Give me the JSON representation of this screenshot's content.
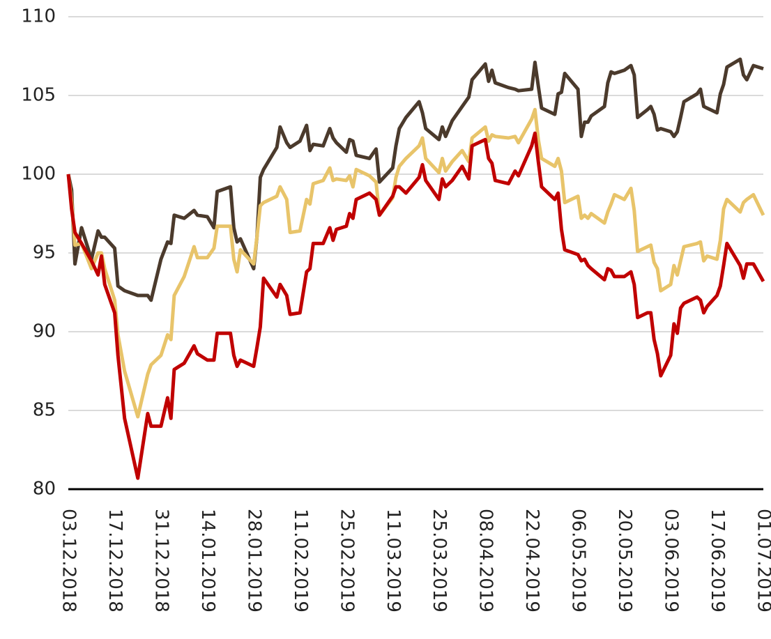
{
  "chart_data": {
    "type": "line",
    "x": [
      "03.12.2018",
      "04.12.2018",
      "05.12.2018",
      "07.12.2018",
      "10.12.2018",
      "12.12.2018",
      "13.12.2018",
      "14.12.2018",
      "17.12.2018",
      "18.12.2018",
      "20.12.2018",
      "24.12.2018",
      "27.12.2018",
      "28.12.2018",
      "31.12.2018",
      "02.01.2019",
      "03.01.2019",
      "04.01.2019",
      "07.01.2019",
      "10.01.2019",
      "11.01.2019",
      "14.01.2019",
      "16.01.2019",
      "17.01.2019",
      "21.01.2019",
      "22.01.2019",
      "23.01.2019",
      "24.01.2019",
      "28.01.2019",
      "29.01.2019",
      "30.01.2019",
      "31.01.2019",
      "04.02.2019",
      "05.02.2019",
      "07.02.2019",
      "08.02.2019",
      "11.02.2019",
      "13.02.2019",
      "14.02.2019",
      "15.02.2019",
      "18.02.2019",
      "20.02.2019",
      "21.02.2019",
      "22.02.2019",
      "25.02.2019",
      "26.02.2019",
      "27.02.2019",
      "28.02.2019",
      "04.03.2019",
      "06.03.2019",
      "07.03.2019",
      "11.03.2019",
      "12.03.2019",
      "13.03.2019",
      "15.03.2019",
      "19.03.2019",
      "20.03.2019",
      "21.03.2019",
      "25.03.2019",
      "26.03.2019",
      "27.03.2019",
      "29.03.2019",
      "01.04.2019",
      "03.04.2019",
      "04.04.2019",
      "08.04.2019",
      "09.04.2019",
      "10.04.2019",
      "11.04.2019",
      "15.04.2019",
      "17.04.2019",
      "18.04.2019",
      "22.04.2019",
      "23.04.2019",
      "24.04.2019",
      "25.04.2019",
      "29.04.2019",
      "30.04.2019",
      "01.05.2019",
      "02.05.2019",
      "06.05.2019",
      "07.05.2019",
      "08.05.2019",
      "09.05.2019",
      "10.05.2019",
      "14.05.2019",
      "15.05.2019",
      "16.05.2019",
      "17.05.2019",
      "20.05.2019",
      "22.05.2019",
      "23.05.2019",
      "24.05.2019",
      "27.05.2019",
      "28.05.2019",
      "29.05.2019",
      "30.05.2019",
      "31.05.2019",
      "03.06.2019",
      "04.06.2019",
      "05.06.2019",
      "06.06.2019",
      "07.06.2019",
      "11.06.2019",
      "12.06.2019",
      "13.06.2019",
      "14.06.2019",
      "17.06.2019",
      "18.06.2019",
      "19.06.2019",
      "20.06.2019",
      "24.06.2019",
      "25.06.2019",
      "26.06.2019",
      "28.06.2019",
      "01.07.2019"
    ],
    "series": [
      {
        "color": "#4b3a2c",
        "values": [
          100,
          99,
          94.3,
          96.6,
          94.6,
          96.4,
          96,
          96,
          95.3,
          92.9,
          92.6,
          92.3,
          92.3,
          92,
          94.6,
          95.7,
          95.6,
          97.4,
          97.2,
          97.7,
          97.4,
          97.3,
          96.6,
          98.9,
          99.2,
          96.6,
          95.7,
          95.9,
          94,
          96,
          99.8,
          100.3,
          101.7,
          103,
          102,
          101.7,
          102.1,
          103.1,
          101.5,
          101.9,
          101.8,
          102.9,
          102.3,
          102,
          101.4,
          102.2,
          102.1,
          101.2,
          101,
          101.6,
          99.5,
          100.4,
          101.8,
          102.9,
          103.6,
          104.6,
          103.9,
          102.9,
          102.2,
          103,
          102.4,
          103.4,
          104.3,
          104.9,
          106,
          107,
          105.9,
          106.6,
          105.8,
          105.5,
          105.4,
          105.3,
          105.4,
          107.1,
          105.6,
          104.2,
          103.8,
          105.1,
          105.2,
          106.4,
          105.4,
          102.4,
          103.3,
          103.3,
          103.7,
          104.3,
          105.8,
          106.5,
          106.4,
          106.6,
          106.9,
          106.3,
          103.6,
          104.1,
          104.3,
          103.8,
          102.8,
          102.9,
          102.7,
          102.4,
          102.7,
          103.6,
          104.6,
          105.1,
          105.4,
          104.3,
          104.2,
          103.9,
          105.1,
          105.7,
          106.8,
          107.3,
          106.3,
          106,
          106.9,
          106.7
        ]
      },
      {
        "color": "#e8c46a",
        "values": [
          100,
          98.3,
          95.5,
          95.6,
          94,
          95,
          95,
          94,
          92,
          89.8,
          87.5,
          84.6,
          87.3,
          87.9,
          88.5,
          89.8,
          89.5,
          92.3,
          93.5,
          95.4,
          94.7,
          94.7,
          95.3,
          96.7,
          96.7,
          94.6,
          93.8,
          95.2,
          94.3,
          96,
          98,
          98.2,
          98.6,
          99.2,
          98.4,
          96.3,
          96.4,
          98.4,
          98.1,
          99.4,
          99.6,
          100.4,
          99.6,
          99.7,
          99.6,
          99.9,
          99.2,
          100.3,
          99.9,
          99.5,
          97.4,
          98.5,
          99.8,
          100.5,
          101,
          101.8,
          102.3,
          101,
          100.1,
          101,
          100.2,
          100.8,
          101.5,
          100.8,
          102.3,
          103,
          102.1,
          102.5,
          102.4,
          102.3,
          102.4,
          102,
          103.5,
          104.1,
          102.2,
          101,
          100.5,
          101,
          100.2,
          98.2,
          98.6,
          97.2,
          97.4,
          97.2,
          97.5,
          96.9,
          97.6,
          98.1,
          98.7,
          98.4,
          99.1,
          97.7,
          95.1,
          95.4,
          95.5,
          94.4,
          94,
          92.6,
          93,
          94.2,
          93.6,
          94.5,
          95.4,
          95.6,
          95.7,
          94.5,
          94.8,
          94.6,
          95.8,
          97.8,
          98.4,
          97.6,
          98.2,
          98.4,
          98.7,
          97.4
        ]
      },
      {
        "color": "#c00000",
        "values": [
          100,
          97.8,
          96.3,
          95.6,
          94.5,
          93.6,
          94.8,
          93,
          91.2,
          88.5,
          84.5,
          80.7,
          84.8,
          84,
          84,
          85.8,
          84.5,
          87.6,
          88,
          89.1,
          88.6,
          88.2,
          88.2,
          89.9,
          89.9,
          88.5,
          87.8,
          88.2,
          87.8,
          89,
          90.3,
          93.4,
          92.2,
          93,
          92.3,
          91.1,
          91.2,
          93.8,
          94,
          95.6,
          95.6,
          96.6,
          95.8,
          96.5,
          96.7,
          97.5,
          97.2,
          98.4,
          98.8,
          98.4,
          97.4,
          98.6,
          99.2,
          99.2,
          98.8,
          99.8,
          100.6,
          99.6,
          98.4,
          99.7,
          99.2,
          99.6,
          100.5,
          99.7,
          101.8,
          102.2,
          101,
          100.7,
          99.6,
          99.4,
          100.2,
          99.9,
          101.8,
          102.6,
          100.8,
          99.2,
          98.4,
          98.8,
          96.5,
          95.2,
          94.9,
          94.5,
          94.6,
          94.2,
          94,
          93.3,
          94,
          93.9,
          93.5,
          93.5,
          93.8,
          93,
          90.9,
          91.2,
          91.2,
          89.5,
          88.6,
          87.2,
          88.5,
          90.5,
          89.9,
          91.5,
          91.8,
          92.2,
          92,
          91.2,
          91.6,
          92.3,
          92.9,
          94.2,
          95.6,
          94.2,
          93.4,
          94.3,
          94.3,
          93.2
        ]
      }
    ],
    "xlim": [
      "03.12.2018",
      "01.07.2019"
    ],
    "xticks": [
      "03.12.2018",
      "17.12.2018",
      "31.12.2018",
      "14.01.2019",
      "28.01.2019",
      "11.02.2019",
      "25.02.2019",
      "11.03.2019",
      "25.03.2019",
      "08.04.2019",
      "22.04.2019",
      "06.05.2019",
      "20.05.2019",
      "03.06.2019",
      "17.06.2019",
      "01.07.2019"
    ],
    "ylim": [
      80,
      110
    ],
    "yticks": [
      80,
      85,
      90,
      95,
      100,
      105,
      110
    ],
    "grid": true
  }
}
